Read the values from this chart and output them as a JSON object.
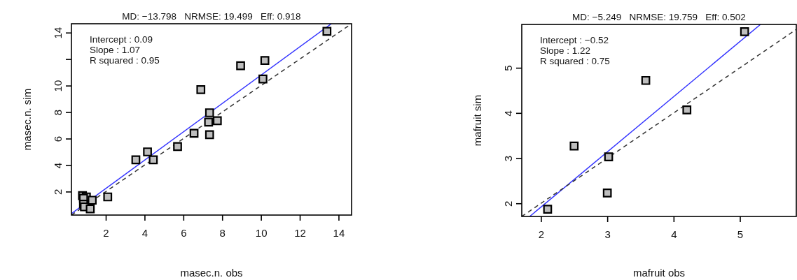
{
  "chart_data": [
    {
      "type": "scatter",
      "title": "MD: −13.798   NRMSE: 19.499   Eff: 0.918",
      "xlabel": "masec.n. obs",
      "ylabel": "masec.n. sim",
      "annotations": [
        "Intercept : 0.09",
        "Slope : 1.07",
        "R squared : 0.95"
      ],
      "xlim": [
        0.23,
        14.67
      ],
      "ylim": [
        0.23,
        14.67
      ],
      "xticks": [
        2,
        4,
        6,
        8,
        10,
        12,
        14
      ],
      "yticks": [
        2,
        4,
        6,
        8,
        10,
        {
          "value": 12,
          "label": null
        },
        14
      ],
      "grid": false,
      "series": [
        {
          "marker": "square",
          "color": "#bebebe",
          "x": [
            13.4,
            10.2,
            8.95,
            10.1,
            6.9,
            7.35,
            7.3,
            7.75,
            7.35,
            6.55,
            5.7,
            4.15,
            3.55,
            4.45,
            2.1,
            0.8,
            1.0,
            0.85,
            1.3,
            0.85,
            0.9,
            1.2
          ],
          "values": [
            14.1,
            11.9,
            11.5,
            10.5,
            9.7,
            7.95,
            7.25,
            7.35,
            6.3,
            6.4,
            5.4,
            5.0,
            4.4,
            4.4,
            1.6,
            1.7,
            1.6,
            1.5,
            1.35,
            1.05,
            0.85,
            0.7
          ]
        },
        {
          "type": "line",
          "color": "#3333ff",
          "line_style": "solid",
          "x": [
            0.23,
            13.63
          ],
          "values": [
            0.34,
            14.67
          ]
        },
        {
          "type": "line",
          "color": "#333333",
          "line_style": "dashed",
          "x": [
            0.23,
            14.67
          ],
          "values": [
            0.23,
            14.67
          ]
        }
      ]
    },
    {
      "type": "scatter",
      "title": "MD: −5.249   NRMSE: 19.759   Eff: 0.502",
      "xlabel": "mafruit obs",
      "ylabel": "mafruit sim",
      "annotations": [
        "Intercept : −0.52",
        "Slope : 1.22",
        "R squared : 0.75"
      ],
      "xlim": [
        1.71,
        5.85
      ],
      "ylim": [
        1.71,
        5.96
      ],
      "xticks": [
        2,
        3,
        4,
        5
      ],
      "yticks": [
        2,
        3,
        4,
        5
      ],
      "grid": false,
      "series": [
        {
          "marker": "square",
          "color": "#bebebe",
          "x": [
            2.1,
            2.5,
            3.0,
            3.02,
            3.58,
            4.2,
            5.07
          ],
          "values": [
            1.87,
            3.27,
            2.23,
            3.03,
            4.72,
            4.07,
            5.8
          ]
        },
        {
          "type": "line",
          "color": "#3333ff",
          "line_style": "solid",
          "x": [
            1.83,
            5.31
          ],
          "values": [
            1.71,
            5.96
          ]
        },
        {
          "type": "line",
          "color": "#333333",
          "line_style": "dashed",
          "x": [
            1.71,
            5.85
          ],
          "values": [
            1.71,
            5.85
          ]
        }
      ]
    }
  ]
}
